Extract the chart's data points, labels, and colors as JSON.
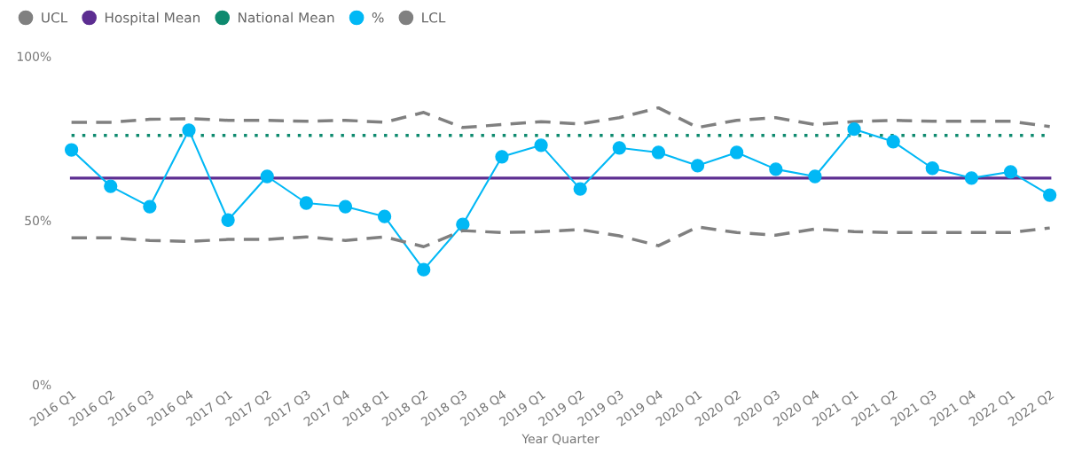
{
  "chart_data": {
    "type": "line",
    "xlabel": "Year Quarter",
    "categories": [
      "2016 Q1",
      "2016 Q2",
      "2016 Q3",
      "2016 Q4",
      "2017 Q1",
      "2017 Q2",
      "2017 Q3",
      "2017 Q4",
      "2018 Q1",
      "2018 Q2",
      "2018 Q3",
      "2018 Q4",
      "2019 Q1",
      "2019 Q2",
      "2019 Q3",
      "2019 Q4",
      "2020 Q1",
      "2020 Q2",
      "2020 Q3",
      "2020 Q4",
      "2021 Q1",
      "2021 Q2",
      "2021 Q3",
      "2021 Q4",
      "2022 Q1",
      "2022 Q2"
    ],
    "series": [
      {
        "name": "UCL",
        "color": "#808080",
        "line_style": "dashed",
        "marker": "none",
        "values": [
          79.9,
          79.9,
          80.8,
          81.0,
          80.5,
          80.5,
          80.2,
          80.5,
          79.9,
          82.9,
          78.3,
          79.2,
          80.1,
          79.4,
          81.3,
          84.3,
          78.3,
          80.5,
          81.3,
          79.2,
          80.1,
          80.5,
          80.2,
          80.2,
          80.2,
          78.6
        ]
      },
      {
        "name": "Hospital Mean",
        "color": "#5c2d91",
        "line_style": "solid",
        "marker": "none",
        "values": [
          62.9,
          62.9,
          62.9,
          62.9,
          62.9,
          62.9,
          62.9,
          62.9,
          62.9,
          62.9,
          62.9,
          62.9,
          62.9,
          62.9,
          62.9,
          62.9,
          62.9,
          62.9,
          62.9,
          62.9,
          62.9,
          62.9,
          62.9,
          62.9,
          62.9,
          62.9
        ]
      },
      {
        "name": "National Mean",
        "color": "#0e8a6f",
        "line_style": "dotted",
        "marker": "none",
        "values": [
          75.9,
          75.9,
          75.9,
          75.9,
          75.9,
          75.9,
          75.9,
          75.9,
          75.9,
          75.9,
          75.9,
          75.9,
          75.9,
          75.9,
          75.9,
          75.9,
          75.9,
          75.9,
          75.9,
          75.9,
          75.9,
          75.9,
          75.9,
          75.9,
          75.9,
          75.9
        ]
      },
      {
        "name": "%",
        "color": "#01b8f5",
        "line_style": "solid",
        "marker": "circle",
        "values": [
          71.5,
          60.4,
          54.2,
          77.5,
          50.1,
          63.4,
          55.3,
          54.2,
          51.2,
          35.0,
          48.8,
          69.4,
          72.9,
          59.6,
          72.1,
          70.7,
          66.7,
          70.7,
          65.6,
          63.4,
          77.8,
          74.0,
          65.9,
          62.9,
          64.8,
          57.7
        ]
      },
      {
        "name": "LCL",
        "color": "#808080",
        "line_style": "dashed",
        "marker": "none",
        "values": [
          44.7,
          44.7,
          43.9,
          43.6,
          44.2,
          44.2,
          45.0,
          43.9,
          45.0,
          42.0,
          46.9,
          46.3,
          46.6,
          47.2,
          45.3,
          42.3,
          48.0,
          46.3,
          45.5,
          47.4,
          46.6,
          46.3,
          46.3,
          46.3,
          46.3,
          47.7
        ]
      }
    ],
    "ylim": [
      0,
      100
    ],
    "yticks": [
      {
        "value": 0,
        "label": "0%"
      },
      {
        "value": 50,
        "label": "50%"
      },
      {
        "value": 100,
        "label": "100%"
      }
    ],
    "grid": false,
    "legend": "top left"
  }
}
